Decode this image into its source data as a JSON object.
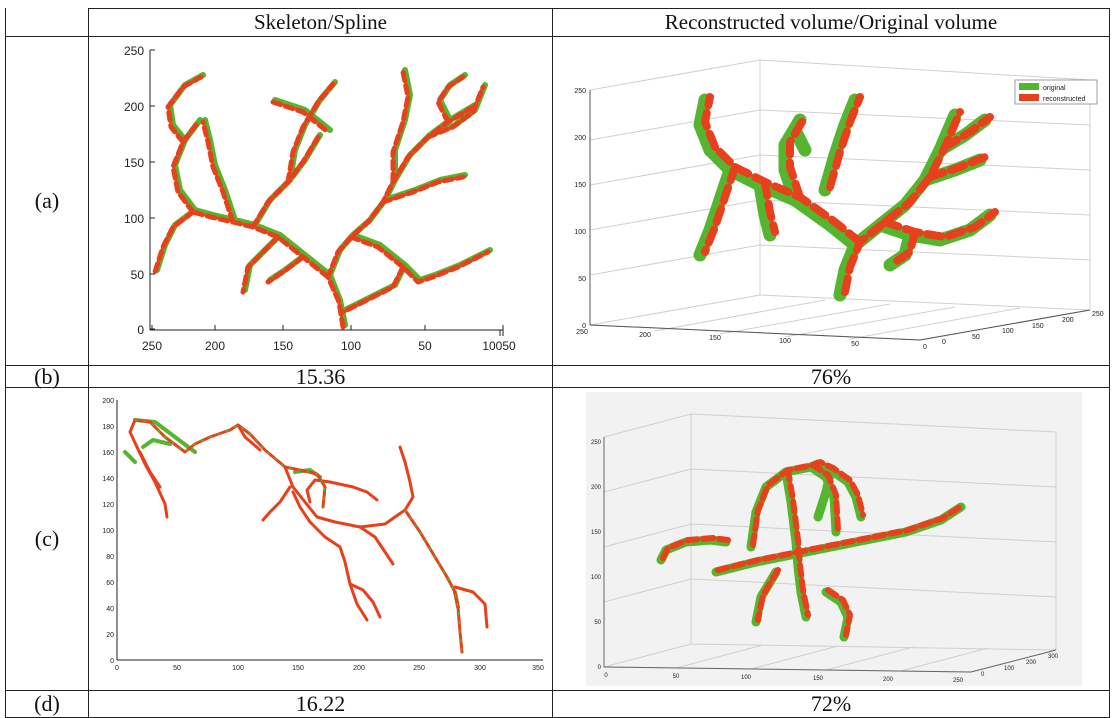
{
  "header": {
    "col_skeleton": "Skeleton/Spline",
    "col_volume": "Reconstructed volume/Original volume"
  },
  "rows": [
    {
      "label": "(a)"
    },
    {
      "label": "(b)",
      "skeleton_value": "15.36",
      "volume_value": "76%"
    },
    {
      "label": "(c)"
    },
    {
      "label": "(d)",
      "skeleton_value": "16.22",
      "volume_value": "72%"
    }
  ],
  "plot_a_skeleton": {
    "y_ticks": [
      "0",
      "50",
      "100",
      "150",
      "200",
      "250"
    ],
    "x_ticks": [
      "250",
      "200",
      "150",
      "100",
      "50",
      "10050"
    ]
  },
  "plot_a_volume": {
    "y_ticks": [
      "0",
      "50",
      "100",
      "150",
      "200",
      "250"
    ],
    "x_ticks": [
      "250",
      "200",
      "150",
      "100",
      "50",
      "0"
    ],
    "z_ticks": [
      "0",
      "50",
      "100",
      "150",
      "200",
      "250"
    ],
    "legend": [
      "original",
      "reconstructed"
    ]
  },
  "plot_c_skeleton": {
    "y_ticks": [
      "0",
      "20",
      "40",
      "60",
      "80",
      "100",
      "120",
      "140",
      "160",
      "180",
      "200"
    ],
    "x_ticks": [
      "0",
      "50",
      "100",
      "150",
      "200",
      "250",
      "300",
      "350"
    ]
  },
  "plot_c_volume": {
    "z_ticks": [
      "0",
      "50",
      "100",
      "150",
      "200",
      "250"
    ],
    "x_ticks": [
      "0",
      "50",
      "100",
      "150",
      "200",
      "250"
    ],
    "y_ticks": [
      "0",
      "100",
      "200",
      "300"
    ]
  },
  "colors": {
    "green": "#55b52e",
    "red": "#e8401c",
    "grid": "#d0d0d0"
  }
}
